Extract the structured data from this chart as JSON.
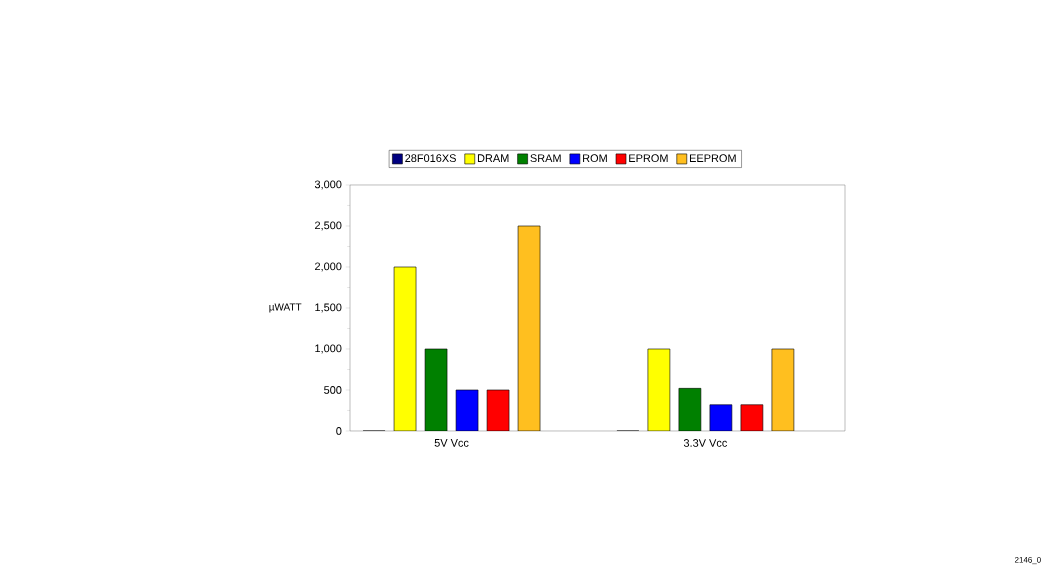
{
  "chart_data": {
    "type": "bar",
    "ylabel": "µWATT",
    "categories": [
      "5V Vcc",
      "3.3V Vcc"
    ],
    "series": [
      {
        "name": "28F016XS",
        "color": "#000080",
        "values": [
          0,
          0
        ]
      },
      {
        "name": "DRAM",
        "color": "#ffff00",
        "values": [
          2000,
          1000
        ]
      },
      {
        "name": "SRAM",
        "color": "#008000",
        "values": [
          1000,
          520
        ]
      },
      {
        "name": "ROM",
        "color": "#0000ff",
        "values": [
          500,
          320
        ]
      },
      {
        "name": "EPROM",
        "color": "#ff0000",
        "values": [
          500,
          320
        ]
      },
      {
        "name": "EEPROM",
        "color": "#ffbf1f",
        "values": [
          2500,
          1000
        ]
      }
    ],
    "ylim": [
      0,
      3000
    ],
    "yticks": [
      0,
      500,
      {
        "value": 1000,
        "label": "1,000"
      },
      {
        "value": 1500,
        "label": "1,500"
      },
      {
        "value": 2000,
        "label": "2,000"
      },
      {
        "value": 2500,
        "label": "2,500"
      },
      {
        "value": 3000,
        "label": "3,000"
      }
    ],
    "legend": "top",
    "grid": false,
    "annotations": [
      "2146_0"
    ]
  }
}
